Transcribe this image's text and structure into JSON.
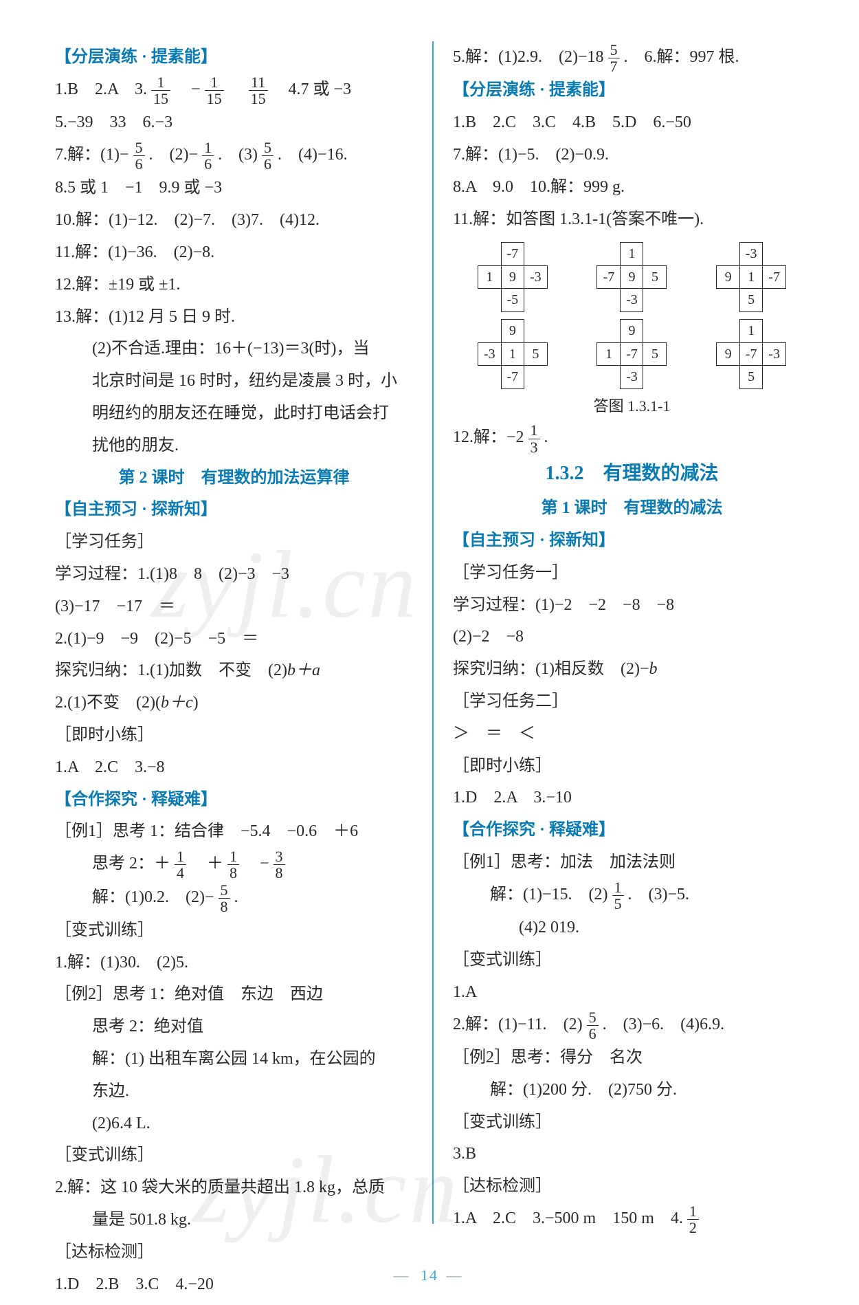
{
  "left": {
    "hdr1": "【分层演练 · 提素能】",
    "l1a": "1.B　2.A　3.",
    "l1_f1n": "1",
    "l1_f1d": "15",
    "l1b": "　−",
    "l1_f2n": "1",
    "l1_f2d": "15",
    "l1c": "　",
    "l1_f3n": "11",
    "l1_f3d": "15",
    "l1d": "　4.7 或 −3",
    "l2": "5.−39　33　6.−3",
    "l3a": "7.解：(1)−",
    "l3_f1n": "5",
    "l3_f1d": "6",
    "l3b": ".　(2)−",
    "l3_f2n": "1",
    "l3_f2d": "6",
    "l3c": ".　(3)",
    "l3_f3n": "5",
    "l3_f3d": "6",
    "l3d": ".　(4)−16.",
    "l4": "8.5 或 1　−1　9.9 或 −3",
    "l5": "10.解：(1)−12.　(2)−7.　(3)7.　(4)12.",
    "l6": "11.解：(1)−36.　(2)−8.",
    "l7": "12.解：±19 或 ±1.",
    "l8": "13.解：(1)12 月 5 日 9 时.",
    "l9": "(2)不合适.理由：16＋(−13)＝3(时)，当",
    "l10": "北京时间是 16 时时，纽约是凌晨 3 时，小",
    "l11": "明纽约的朋友还在睡觉，此时打电话会打",
    "l12": "扰他的朋友.",
    "sub1": "第 2 课时　有理数的加法运算律",
    "hdr2": "【自主预习 · 探新知】",
    "l13": "［学习任务］",
    "l14": "学习过程：1.(1)8　8　(2)−3　−3",
    "l15": "(3)−17　−17　＝",
    "l16": "2.(1)−9　−9　(2)−5　−5　＝",
    "l17a": "探究归纳：1.(1)加数　不变　(2)",
    "l17b": "b＋a",
    "l18a": "2.(1)不变　(2)(",
    "l18b": "b＋c",
    "l18c": ")",
    "l19": "［即时小练］",
    "l20": "1.A　2.C　3.−8",
    "hdr3": "【合作探究 · 释疑难】",
    "l21": "［例1］思考 1：结合律　−5.4　−0.6　＋6",
    "l22a": "思考 2：＋",
    "l22_f1n": "1",
    "l22_f1d": "4",
    "l22b": "　＋",
    "l22_f2n": "1",
    "l22_f2d": "8",
    "l22c": "　−",
    "l22_f3n": "3",
    "l22_f3d": "8",
    "l23a": "解：(1)0.2.　(2)−",
    "l23_f1n": "5",
    "l23_f1d": "8",
    "l23b": ".",
    "l24": "［变式训练］",
    "l25": "1.解：(1)30.　(2)5.",
    "l26": "［例2］思考 1：绝对值　东边　西边",
    "l27": "思考 2：绝对值",
    "l28": "解：(1) 出租车离公园 14 km，在公园的",
    "l29": "东边.",
    "l30": "(2)6.4 L.",
    "l31": "［变式训练］",
    "l32": "2.解：这 10 袋大米的质量共超出 1.8 kg，总质",
    "l33": "量是 501.8 kg.",
    "l34": "［达标检测］",
    "l35": "1.D　2.B　3.C　4.−20"
  },
  "right": {
    "l1a": "5.解：(1)2.9.　(2)−18",
    "l1_f1n": "5",
    "l1_f1d": "7",
    "l1b": ".　6.解：997 根.",
    "hdr1": "【分层演练 · 提素能】",
    "l2": "1.B　2.C　3.C　4.B　5.D　6.−50",
    "l3": "7.解：(1)−5.　(2)−0.9.",
    "l4": "8.A　9.0　10.解：999 g.",
    "l5": "11.解：如答图 1.3.1-1(答案不唯一).",
    "crosses": [
      {
        "t": "-7",
        "l": "1",
        "c": "9",
        "r": "-3",
        "b": "-5"
      },
      {
        "t": "1",
        "l": "-7",
        "c": "9",
        "r": "5",
        "b": "-3"
      },
      {
        "t": "-3",
        "l": "9",
        "c": "1",
        "r": "-7",
        "b": "5"
      },
      {
        "t": "9",
        "l": "-3",
        "c": "1",
        "r": "5",
        "b": "-7"
      },
      {
        "t": "9",
        "l": "1",
        "c": "-7",
        "r": "5",
        "b": "-3"
      },
      {
        "t": "1",
        "l": "9",
        "c": "-7",
        "r": "-3",
        "b": "5"
      }
    ],
    "figcap": "答图 1.3.1-1",
    "l6a": "12.解：−2",
    "l6_f1n": "1",
    "l6_f1d": "3",
    "l6b": ".",
    "big1": "1.3.2　有理数的减法",
    "sub1": "第 1 课时　有理数的减法",
    "hdr2": "【自主预习 · 探新知】",
    "l7": "［学习任务一］",
    "l8": "学习过程：(1)−2　−2　−8　−8",
    "l9": "(2)−2　−8",
    "l10a": "探究归纳：(1)相反数　(2)−",
    "l10b": "b",
    "l11": "［学习任务二］",
    "l12": "＞　＝　＜",
    "l13": "［即时小练］",
    "l14": "1.D　2.A　3.−10",
    "hdr3": "【合作探究 · 释疑难】",
    "l15": "［例1］思考：加法　加法法则",
    "l16a": "解：(1)−15.　(2)",
    "l16_f1n": "1",
    "l16_f1d": "5",
    "l16b": ".　(3)−5.",
    "l17": "(4)2 019.",
    "l18": "［变式训练］",
    "l19": "1.A",
    "l20a": "2.解：(1)−11.　(2)",
    "l20_f1n": "5",
    "l20_f1d": "6",
    "l20b": ".　(3)−6.　(4)6.9.",
    "l21": "［例2］思考：得分　名次",
    "l22": "解：(1)200 分.　(2)750 分.",
    "l23": "［变式训练］",
    "l24": "3.B",
    "l25": "［达标检测］",
    "l26a": "1.A　2.C　3.−500 m　150 m　4.",
    "l26_f1n": "1",
    "l26_f1d": "2"
  },
  "pagenum": "14"
}
